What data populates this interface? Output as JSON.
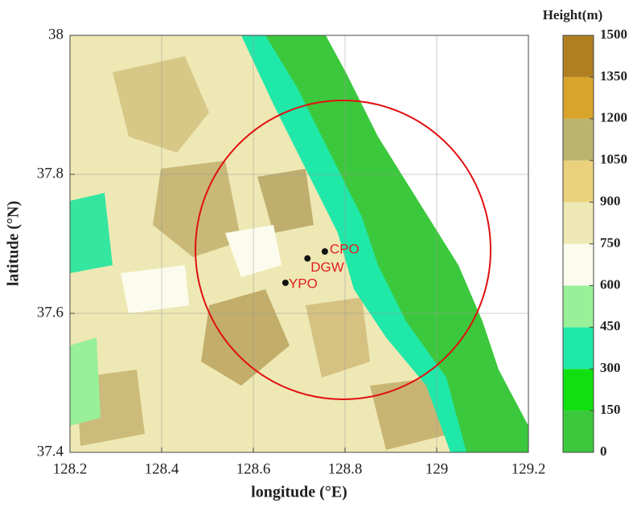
{
  "map": {
    "xlabel": "longitude (°E)",
    "ylabel": "latitude (°N)",
    "xlim": [
      128.2,
      129.2
    ],
    "ylim": [
      37.4,
      38
    ],
    "xticks": [
      128.2,
      128.4,
      128.6,
      128.8,
      129,
      129.2
    ],
    "yticks": [
      37.4,
      37.6,
      37.8,
      38
    ],
    "stations": [
      {
        "name": "CPO",
        "lon": 128.756,
        "lat": 37.689
      },
      {
        "name": "DGW",
        "lon": 128.718,
        "lat": 37.679
      },
      {
        "name": "YPO",
        "lon": 128.67,
        "lat": 37.644
      }
    ],
    "colorbar": {
      "title": "Height(m)",
      "levels": [
        0,
        150,
        300,
        450,
        600,
        750,
        900,
        1050,
        1200,
        1350,
        1500
      ],
      "colors": [
        "#3cc83c",
        "#10e010",
        "#20e8a8",
        "#98f098",
        "#fcfcee",
        "#eee8b4",
        "#ead27c",
        "#bab470",
        "#d8a42c",
        "#b08020"
      ]
    }
  }
}
